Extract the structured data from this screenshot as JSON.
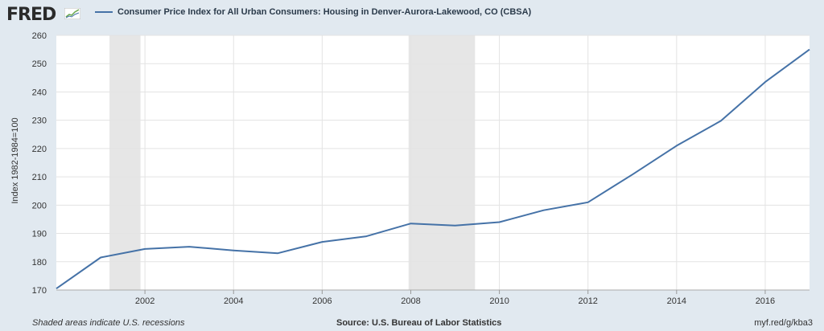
{
  "brand": {
    "logo_text": "FRED"
  },
  "chart_data": {
    "type": "line",
    "title": "Consumer Price Index for All Urban Consumers: Housing in Denver-Aurora-Lakewood, CO (CBSA)",
    "ylabel": "Index 1982-1984=100",
    "xlabel": "",
    "ylim": [
      170,
      260
    ],
    "yticks": [
      170,
      180,
      190,
      200,
      210,
      220,
      230,
      240,
      250,
      260
    ],
    "xlim": [
      2000,
      2017
    ],
    "xticks": [
      "2002",
      "2004",
      "2006",
      "2008",
      "2010",
      "2012",
      "2014",
      "2016"
    ],
    "grid": true,
    "series": [
      {
        "name": "Consumer Price Index for All Urban Consumers: Housing in Denver-Aurora-Lakewood, CO (CBSA)",
        "color": "#4572a7",
        "x": [
          2000,
          2001,
          2002,
          2003,
          2004,
          2005,
          2006,
          2007,
          2008,
          2009,
          2010,
          2011,
          2012,
          2013,
          2014,
          2015,
          2016,
          2017
        ],
        "values": [
          170.5,
          181.5,
          184.5,
          185.3,
          184.0,
          183.0,
          187.0,
          189.0,
          193.5,
          192.8,
          194.0,
          198.2,
          201.0,
          210.8,
          221.0,
          229.8,
          243.5,
          255.0
        ]
      }
    ],
    "recessions": [
      [
        2001.2,
        2001.9
      ],
      [
        2007.95,
        2009.45
      ]
    ]
  },
  "footer": {
    "note": "Shaded areas indicate U.S. recessions",
    "source": "Source: U.S. Bureau of Labor Statistics",
    "link": "myf.red/g/kba3"
  },
  "colors": {
    "background": "#e1e9f0",
    "plot_bg": "#ffffff",
    "recession": "#e6e6e6",
    "grid": "#e3e3e3",
    "line": "#4572a7"
  }
}
